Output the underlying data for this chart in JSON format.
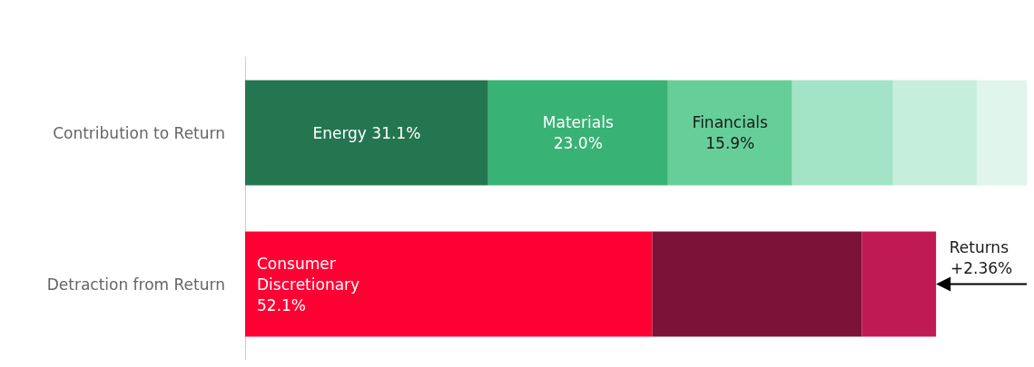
{
  "chart_data": {
    "type": "bar",
    "orientation": "horizontal",
    "stacked": true,
    "categories": [
      "Contribution to Return",
      "Detraction from Return"
    ],
    "xlim": [
      0,
      100
    ],
    "tick_labels": "y",
    "legend": false,
    "series": [
      {
        "name": "Energy",
        "color": "#237650",
        "values": [
          31.1,
          null
        ],
        "value_labels": [
          "31.1%",
          null
        ]
      },
      {
        "name": "Materials",
        "color": "#38b275",
        "values": [
          23.0,
          null
        ],
        "value_labels": [
          "23.0%",
          null
        ]
      },
      {
        "name": "Financials",
        "color": "#66cf99",
        "values": [
          15.9,
          null
        ],
        "value_labels": [
          "15.9%",
          null
        ]
      },
      {
        "color": "#a3e4c6",
        "values": [
          12.9,
          null
        ]
      },
      {
        "color": "#c5eedb",
        "values": [
          10.7,
          null
        ]
      },
      {
        "color": "#e0f5eb",
        "values": [
          6.4,
          null
        ]
      },
      {
        "name": "Consumer Discretionary",
        "color": "#ff0033",
        "values": [
          null,
          52.1
        ],
        "value_labels": [
          null,
          "52.1%"
        ]
      },
      {
        "color": "#7d1238",
        "values": [
          null,
          26.8
        ]
      },
      {
        "color": "#c01a55",
        "values": [
          null,
          9.5
        ]
      }
    ],
    "annotations": [
      "Returns +2.36%"
    ]
  }
}
